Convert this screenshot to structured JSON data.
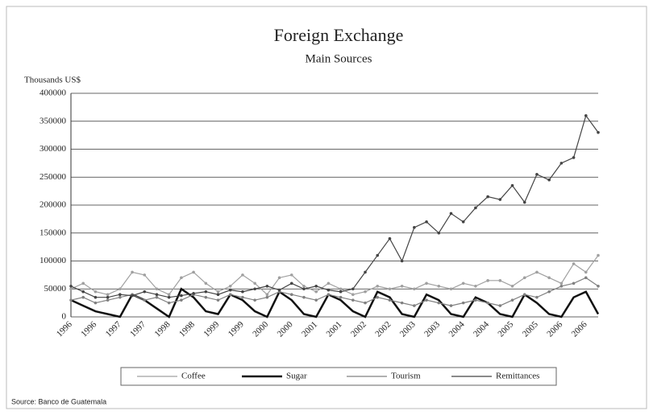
{
  "chart_data": {
    "type": "line",
    "title": "Foreign Exchange",
    "subtitle": "Main Sources",
    "y_label": "Thousands US$",
    "source": "Source: Banco de Guatemala",
    "categories": [
      "1996",
      null,
      "1996",
      null,
      "1997",
      null,
      "1997",
      null,
      "1998",
      null,
      "1998",
      null,
      "1999",
      null,
      "1999",
      null,
      "2000",
      null,
      "2000",
      null,
      "2001",
      null,
      "2001",
      null,
      "2002",
      null,
      "2002",
      null,
      "2003",
      null,
      "2003",
      null,
      "2004",
      null,
      "2004",
      null,
      "2005",
      null,
      "2005",
      null,
      "2006",
      null,
      "2006",
      null
    ],
    "series": [
      {
        "name": "Coffee",
        "color": "#a0a0a0",
        "values": [
          50000,
          60000,
          45000,
          40000,
          50000,
          80000,
          75000,
          50000,
          40000,
          70000,
          80000,
          60000,
          45000,
          55000,
          75000,
          60000,
          40000,
          70000,
          75000,
          55000,
          45000,
          60000,
          50000,
          40000,
          45000,
          55000,
          50000,
          55000,
          50000,
          60000,
          55000,
          50000,
          60000,
          55000,
          65000,
          65000,
          55000,
          70000,
          80000,
          70000,
          60000,
          95000,
          80000,
          110000
        ]
      },
      {
        "name": "Sugar",
        "color": "#111111",
        "values": [
          30000,
          20000,
          10000,
          5000,
          0,
          40000,
          30000,
          15000,
          0,
          50000,
          35000,
          10000,
          5000,
          40000,
          30000,
          10000,
          0,
          45000,
          30000,
          5000,
          0,
          40000,
          30000,
          10000,
          0,
          45000,
          35000,
          5000,
          0,
          40000,
          30000,
          5000,
          0,
          35000,
          25000,
          5000,
          0,
          40000,
          25000,
          5000,
          0,
          35000,
          45000,
          5000
        ]
      },
      {
        "name": "Tourism",
        "color": "#808080",
        "values": [
          30000,
          35000,
          25000,
          30000,
          35000,
          40000,
          30000,
          35000,
          25000,
          30000,
          40000,
          35000,
          30000,
          40000,
          35000,
          30000,
          35000,
          45000,
          40000,
          35000,
          30000,
          40000,
          35000,
          30000,
          25000,
          35000,
          30000,
          25000,
          20000,
          30000,
          25000,
          20000,
          25000,
          30000,
          25000,
          20000,
          30000,
          40000,
          35000,
          45000,
          55000,
          60000,
          70000,
          55000
        ]
      },
      {
        "name": "Remittances",
        "color": "#444444",
        "values": [
          55000,
          45000,
          35000,
          35000,
          40000,
          38000,
          45000,
          40000,
          35000,
          38000,
          42000,
          45000,
          40000,
          48000,
          45000,
          50000,
          55000,
          48000,
          60000,
          50000,
          55000,
          48000,
          45000,
          50000,
          80000,
          110000,
          140000,
          100000,
          160000,
          170000,
          150000,
          185000,
          170000,
          195000,
          215000,
          210000,
          235000,
          205000,
          255000,
          245000,
          275000,
          285000,
          360000,
          330000
        ]
      }
    ],
    "ylim": [
      0,
      400000
    ],
    "yticks": [
      0,
      50000,
      100000,
      150000,
      200000,
      250000,
      300000,
      350000,
      400000
    ],
    "grid": true
  }
}
